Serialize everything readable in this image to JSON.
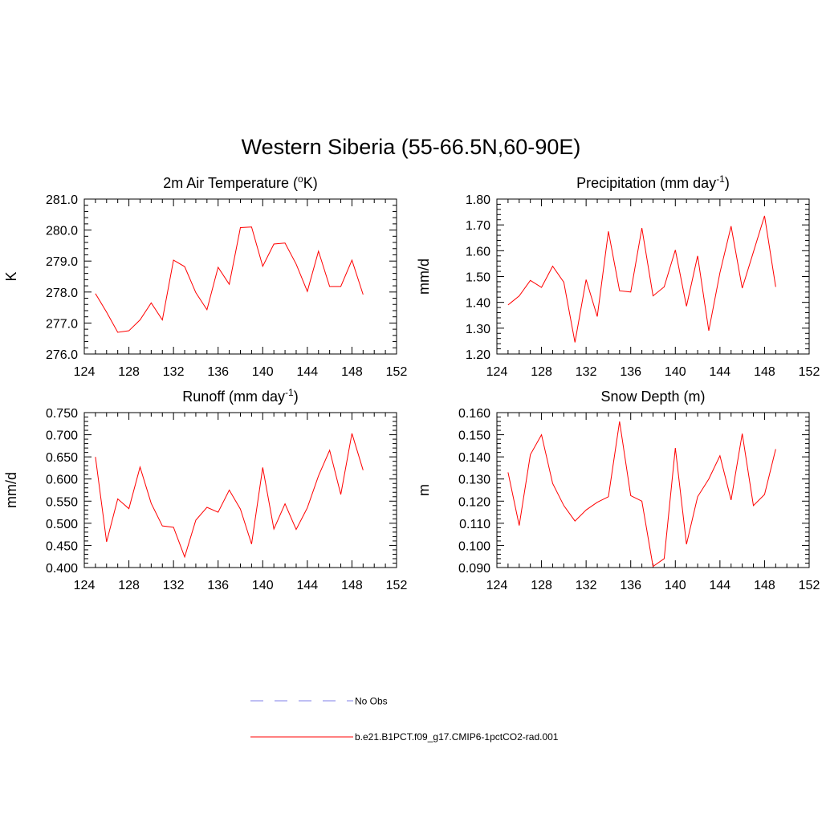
{
  "figure": {
    "title": "Western Siberia (55-66.5N,60-90E)"
  },
  "legend": {
    "entries": [
      {
        "label": "No Obs",
        "style": "dashed",
        "color": "#9999ee"
      },
      {
        "label": "b.e21.B1PCT.f09_g17.CMIP6-1pctCO2-rad.001",
        "style": "solid",
        "color": "#ff0000"
      }
    ]
  },
  "chart_data": [
    {
      "type": "line",
      "title": "2m Air Temperature (",
      "title_sup": "o",
      "title_tail": "K)",
      "ylabel": "K",
      "xlim": [
        124,
        152
      ],
      "ylim": [
        276.0,
        281.0
      ],
      "xticks": [
        124,
        128,
        132,
        136,
        140,
        144,
        148,
        152
      ],
      "yticks": [
        "276.0",
        "277.0",
        "278.0",
        "279.0",
        "280.0",
        "281.0"
      ],
      "x": [
        125,
        126,
        127,
        128,
        129,
        130,
        131,
        132,
        133,
        134,
        135,
        136,
        137,
        138,
        139,
        140,
        141,
        142,
        143,
        144,
        145,
        146,
        147,
        148,
        149
      ],
      "series": [
        {
          "color": "#ff0000",
          "values": [
            277.95,
            277.35,
            276.7,
            276.75,
            277.1,
            277.65,
            277.1,
            279.03,
            278.82,
            277.98,
            277.43,
            278.8,
            278.25,
            280.08,
            280.1,
            278.83,
            279.55,
            279.58,
            278.9,
            278.02,
            279.32,
            278.18,
            278.18,
            279.03,
            277.92
          ]
        }
      ]
    },
    {
      "type": "line",
      "title": "Precipitation (mm day",
      "title_sup": "-1",
      "title_tail": ")",
      "ylabel": "mm/d",
      "xlim": [
        124,
        152
      ],
      "ylim": [
        1.2,
        1.8
      ],
      "xticks": [
        124,
        128,
        132,
        136,
        140,
        144,
        148,
        152
      ],
      "yticks": [
        "1.20",
        "1.30",
        "1.40",
        "1.50",
        "1.60",
        "1.70",
        "1.80"
      ],
      "x": [
        125,
        126,
        127,
        128,
        129,
        130,
        131,
        132,
        133,
        134,
        135,
        136,
        137,
        138,
        139,
        140,
        141,
        142,
        143,
        144,
        145,
        146,
        147,
        148,
        149
      ],
      "series": [
        {
          "color": "#ff0000",
          "values": [
            1.39,
            1.425,
            1.485,
            1.458,
            1.54,
            1.478,
            1.245,
            1.488,
            1.345,
            1.675,
            1.445,
            1.44,
            1.688,
            1.425,
            1.46,
            1.603,
            1.385,
            1.58,
            1.29,
            1.515,
            1.695,
            1.455,
            1.595,
            1.735,
            1.46
          ]
        }
      ]
    },
    {
      "type": "line",
      "title": "Runoff (mm day",
      "title_sup": "-1",
      "title_tail": ")",
      "ylabel": "mm/d",
      "xlim": [
        124,
        152
      ],
      "ylim": [
        0.4,
        0.75
      ],
      "xticks": [
        124,
        128,
        132,
        136,
        140,
        144,
        148,
        152
      ],
      "yticks": [
        "0.400",
        "0.450",
        "0.500",
        "0.550",
        "0.600",
        "0.650",
        "0.700",
        "0.750"
      ],
      "x": [
        125,
        126,
        127,
        128,
        129,
        130,
        131,
        132,
        133,
        134,
        135,
        136,
        137,
        138,
        139,
        140,
        141,
        142,
        143,
        144,
        145,
        146,
        147,
        148,
        149
      ],
      "series": [
        {
          "color": "#ff0000",
          "values": [
            0.65,
            0.458,
            0.555,
            0.533,
            0.627,
            0.545,
            0.494,
            0.491,
            0.424,
            0.507,
            0.536,
            0.525,
            0.575,
            0.532,
            0.453,
            0.626,
            0.487,
            0.544,
            0.486,
            0.535,
            0.607,
            0.665,
            0.565,
            0.703,
            0.62
          ]
        }
      ]
    },
    {
      "type": "line",
      "title": "Snow Depth (m)",
      "title_sup": "",
      "title_tail": "",
      "ylabel": "m",
      "xlim": [
        124,
        152
      ],
      "ylim": [
        0.09,
        0.16
      ],
      "xticks": [
        124,
        128,
        132,
        136,
        140,
        144,
        148,
        152
      ],
      "yticks": [
        "0.090",
        "0.100",
        "0.110",
        "0.120",
        "0.130",
        "0.140",
        "0.150",
        "0.160"
      ],
      "x": [
        125,
        126,
        127,
        128,
        129,
        130,
        131,
        132,
        133,
        134,
        135,
        136,
        137,
        138,
        139,
        140,
        141,
        142,
        143,
        144,
        145,
        146,
        147,
        148,
        149
      ],
      "series": [
        {
          "color": "#ff0000",
          "values": [
            0.133,
            0.109,
            0.141,
            0.15,
            0.128,
            0.118,
            0.111,
            0.116,
            0.1195,
            0.122,
            0.156,
            0.1225,
            0.12,
            0.0905,
            0.094,
            0.144,
            0.1005,
            0.122,
            0.13,
            0.1405,
            0.1205,
            0.1505,
            0.118,
            0.123,
            0.1435
          ]
        }
      ]
    }
  ]
}
